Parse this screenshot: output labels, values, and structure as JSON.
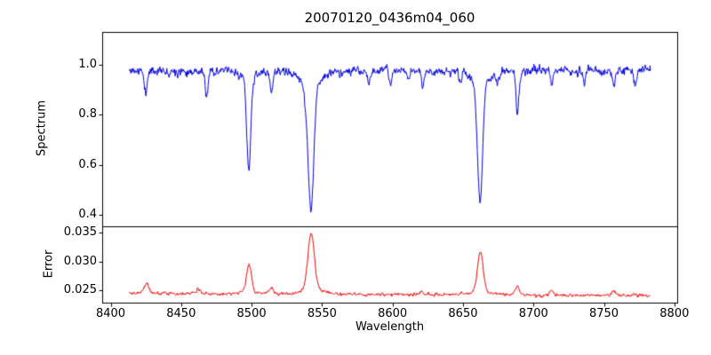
{
  "figure": {
    "background": "#ffffff"
  },
  "chart_data": {
    "type": "line",
    "title": "20070120_0436m04_060",
    "xlabel": "Wavelength",
    "grid": false,
    "legend": null,
    "xlim": [
      8394,
      8802
    ],
    "x_data_range": [
      8413,
      8783
    ],
    "x_ticks": [
      {
        "v": 8400,
        "label": "8400"
      },
      {
        "v": 8450,
        "label": "8450"
      },
      {
        "v": 8500,
        "label": "8500"
      },
      {
        "v": 8550,
        "label": "8550"
      },
      {
        "v": 8600,
        "label": "8600"
      },
      {
        "v": 8650,
        "label": "8650"
      },
      {
        "v": 8700,
        "label": "8700"
      },
      {
        "v": 8750,
        "label": "8750"
      },
      {
        "v": 8800,
        "label": "8800"
      }
    ],
    "panels": [
      {
        "name": "spectrum",
        "ylabel": "Spectrum",
        "color": "#0000dd",
        "ylim": [
          0.355,
          1.13
        ],
        "y_ticks": [
          {
            "v": 0.4,
            "label": "0.4"
          },
          {
            "v": 0.6,
            "label": "0.6"
          },
          {
            "v": 0.8,
            "label": "0.8"
          },
          {
            "v": 1.0,
            "label": "1.0"
          }
        ],
        "continuum": 0.975,
        "noise_sigma": 0.015,
        "absorption_lines": [
          {
            "center": 8498.0,
            "depth": 0.4,
            "core_width": 1.4,
            "wing_width": 4.5
          },
          {
            "center": 8542.1,
            "depth": 0.565,
            "core_width": 2.0,
            "wing_width": 7.0
          },
          {
            "center": 8662.1,
            "depth": 0.53,
            "core_width": 1.8,
            "wing_width": 6.0
          }
        ],
        "weak_lines": [
          {
            "center": 8424.8,
            "depth": 0.09,
            "width": 1.0
          },
          {
            "center": 8468.0,
            "depth": 0.11,
            "width": 1.0
          },
          {
            "center": 8514.1,
            "depth": 0.08,
            "width": 1.0
          },
          {
            "center": 8538.0,
            "depth": 0.05,
            "width": 0.9
          },
          {
            "center": 8583.0,
            "depth": 0.05,
            "width": 0.9
          },
          {
            "center": 8598.8,
            "depth": 0.05,
            "width": 0.9
          },
          {
            "center": 8611.0,
            "depth": 0.04,
            "width": 0.8
          },
          {
            "center": 8621.4,
            "depth": 0.06,
            "width": 0.9
          },
          {
            "center": 8648.0,
            "depth": 0.04,
            "width": 0.8
          },
          {
            "center": 8674.7,
            "depth": 0.05,
            "width": 0.9
          },
          {
            "center": 8688.6,
            "depth": 0.16,
            "width": 1.1
          },
          {
            "center": 8713.0,
            "depth": 0.06,
            "width": 0.9
          },
          {
            "center": 8736.0,
            "depth": 0.05,
            "width": 0.9
          },
          {
            "center": 8757.0,
            "depth": 0.07,
            "width": 0.9
          },
          {
            "center": 8772.0,
            "depth": 0.05,
            "width": 0.9
          }
        ]
      },
      {
        "name": "error",
        "ylabel": "Error",
        "color": "#ee0000",
        "ylim": [
          0.0229,
          0.0361
        ],
        "y_ticks": [
          {
            "v": 0.025,
            "label": "0.025"
          },
          {
            "v": 0.03,
            "label": "0.030"
          },
          {
            "v": 0.035,
            "label": "0.035"
          }
        ],
        "baseline_start": 0.0245,
        "baseline_end": 0.0241,
        "noise_sigma": 0.00025,
        "peaks": [
          {
            "center": 8425.5,
            "height": 0.0019,
            "width": 1.4
          },
          {
            "center": 8462.0,
            "height": 0.0008,
            "width": 1.2
          },
          {
            "center": 8498.2,
            "height": 0.0052,
            "width": 1.7
          },
          {
            "center": 8514.0,
            "height": 0.001,
            "width": 1.3
          },
          {
            "center": 8542.3,
            "height": 0.0107,
            "width": 2.3
          },
          {
            "center": 8621.0,
            "height": 0.0007,
            "width": 1.2
          },
          {
            "center": 8662.3,
            "height": 0.0075,
            "width": 2.0
          },
          {
            "center": 8688.6,
            "height": 0.0014,
            "width": 1.4
          },
          {
            "center": 8713.0,
            "height": 0.0008,
            "width": 1.2
          },
          {
            "center": 8757.0,
            "height": 0.0009,
            "width": 1.2
          }
        ]
      }
    ]
  }
}
